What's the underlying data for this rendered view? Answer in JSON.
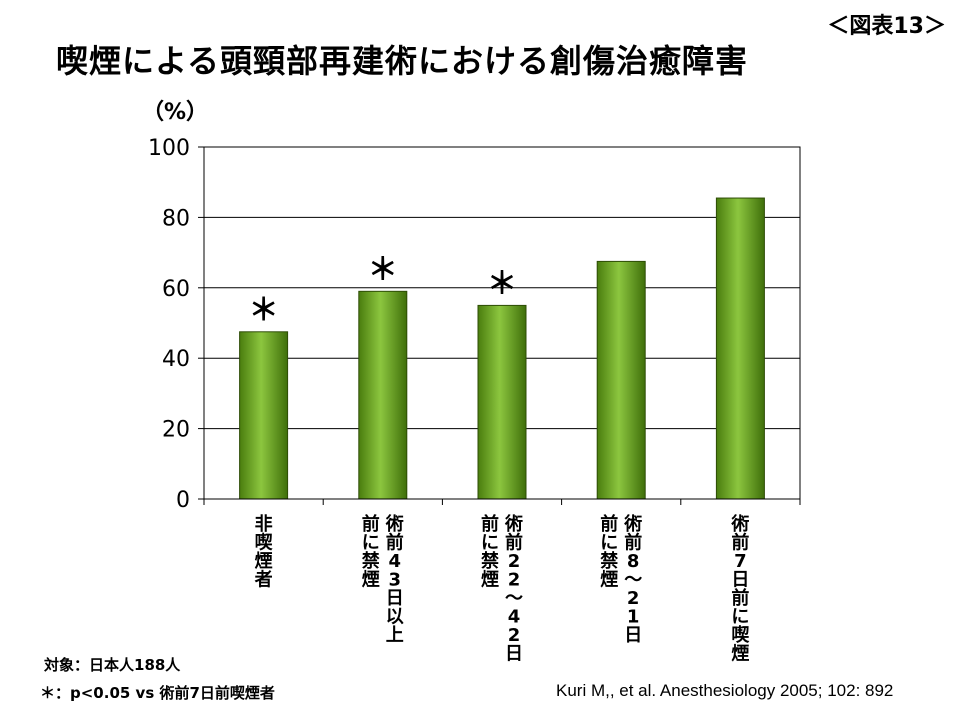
{
  "figure_label": "＜図表13＞",
  "title": "喫煙による頭頸部再建術における創傷治癒障害",
  "unit_label": "（%）",
  "chart_data": {
    "type": "bar",
    "categories": [
      "非喫煙者",
      "術前43日以上前に禁煙",
      "術前22〜42日前に禁煙",
      "術前8〜21日前に禁煙",
      "術前7日前に喫煙"
    ],
    "category_columns": [
      [
        "非喫煙者"
      ],
      [
        "術前43日以上",
        "前に禁煙"
      ],
      [
        "術前22〜42日",
        "前に禁煙"
      ],
      [
        "術前8〜21日",
        "前に禁煙"
      ],
      [
        "術前7日前に喫煙"
      ]
    ],
    "values": [
      47.5,
      59,
      55,
      67.5,
      85.5
    ],
    "significance": [
      "＊",
      "＊",
      "＊",
      "",
      ""
    ],
    "ylim": [
      0,
      100
    ],
    "yticks": [
      0,
      20,
      40,
      60,
      80,
      100
    ],
    "grid": true,
    "bar_color": "#66a31c"
  },
  "notes": {
    "subjects": "対象：日本人188人",
    "significance_note": "＊：p<0.05 vs 術前7日前喫煙者",
    "citation": "Kuri M,, et al. Anesthesiology 2005; 102: 892"
  }
}
